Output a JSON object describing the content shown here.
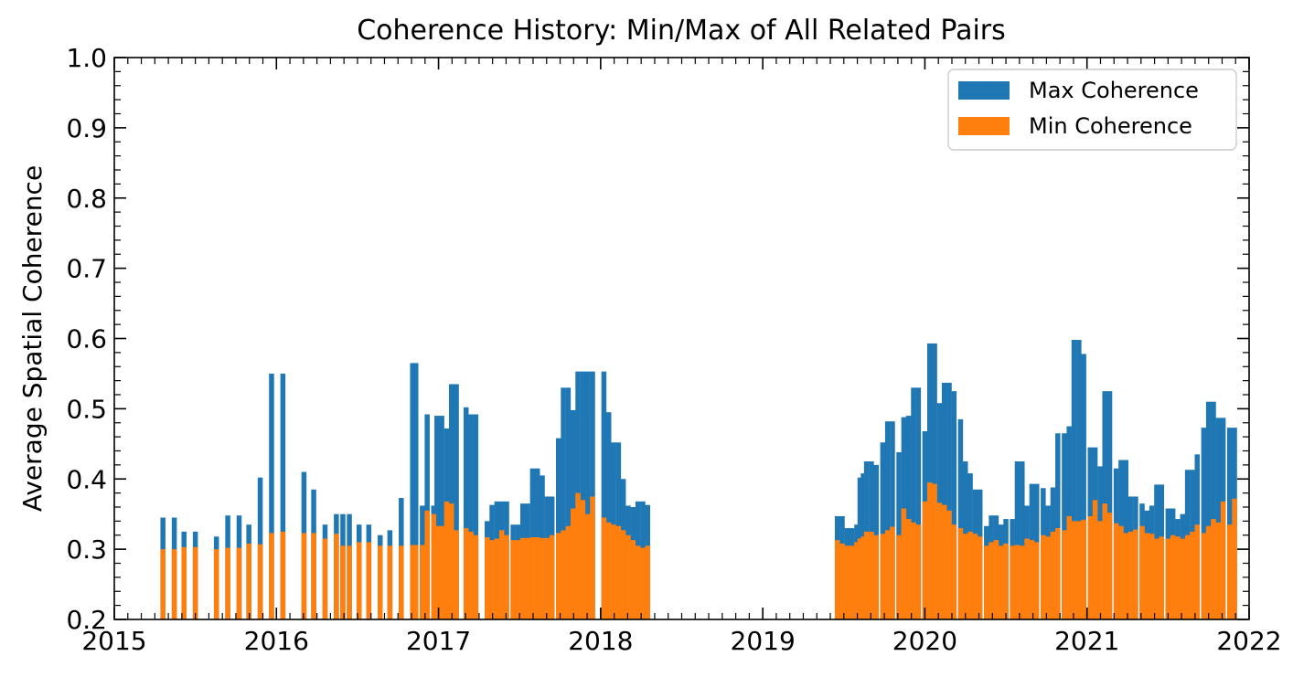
{
  "chart_data": {
    "type": "bar",
    "title": "Coherence History: Min/Max of All Related Pairs",
    "xlabel": "",
    "ylabel": "Average Spatial Coherence",
    "xlim": [
      2015.0,
      2022.0
    ],
    "ylim": [
      0.2,
      1.0
    ],
    "xticks": [
      "2015",
      "2016",
      "2017",
      "2018",
      "2019",
      "2020",
      "2021",
      "2022"
    ],
    "yticks": [
      "0.2",
      "0.3",
      "0.4",
      "0.5",
      "0.6",
      "0.7",
      "0.8",
      "0.9",
      "1.0"
    ],
    "grid": false,
    "legend_position": "top-right",
    "colors": {
      "max": "#1f77b4",
      "min": "#ff7f0e"
    },
    "series": [
      {
        "name": "Max Coherence",
        "points": [
          [
            2015.3,
            0.345
          ],
          [
            2015.37,
            0.345
          ],
          [
            2015.43,
            0.325
          ],
          [
            2015.5,
            0.325
          ],
          [
            2015.63,
            0.318
          ],
          [
            2015.7,
            0.348
          ],
          [
            2015.77,
            0.348
          ],
          [
            2015.83,
            0.335
          ],
          [
            2015.9,
            0.402
          ],
          [
            2015.97,
            0.55
          ],
          [
            2016.04,
            0.55
          ],
          [
            2016.17,
            0.41
          ],
          [
            2016.23,
            0.385
          ],
          [
            2016.3,
            0.335
          ],
          [
            2016.37,
            0.35
          ],
          [
            2016.41,
            0.35
          ],
          [
            2016.45,
            0.35
          ],
          [
            2016.51,
            0.335
          ],
          [
            2016.57,
            0.335
          ],
          [
            2016.64,
            0.32
          ],
          [
            2016.7,
            0.327
          ],
          [
            2016.77,
            0.373
          ],
          [
            2016.84,
            0.565
          ],
          [
            2016.86,
            0.565
          ],
          [
            2016.9,
            0.362
          ],
          [
            2016.93,
            0.492
          ],
          [
            2016.97,
            0.362
          ],
          [
            2016.99,
            0.49
          ],
          [
            2017.02,
            0.49
          ],
          [
            2017.05,
            0.472
          ],
          [
            2017.08,
            0.535
          ],
          [
            2017.11,
            0.535
          ],
          [
            2017.17,
            0.502
          ],
          [
            2017.2,
            0.492
          ],
          [
            2017.23,
            0.492
          ],
          [
            2017.3,
            0.34
          ],
          [
            2017.33,
            0.363
          ],
          [
            2017.36,
            0.368
          ],
          [
            2017.39,
            0.368
          ],
          [
            2017.42,
            0.368
          ],
          [
            2017.46,
            0.335
          ],
          [
            2017.49,
            0.335
          ],
          [
            2017.52,
            0.365
          ],
          [
            2017.55,
            0.365
          ],
          [
            2017.58,
            0.415
          ],
          [
            2017.61,
            0.415
          ],
          [
            2017.64,
            0.405
          ],
          [
            2017.67,
            0.375
          ],
          [
            2017.7,
            0.375
          ],
          [
            2017.74,
            0.458
          ],
          [
            2017.77,
            0.53
          ],
          [
            2017.8,
            0.53
          ],
          [
            2017.83,
            0.498
          ],
          [
            2017.86,
            0.553
          ],
          [
            2017.89,
            0.553
          ],
          [
            2017.92,
            0.553
          ],
          [
            2017.95,
            0.553
          ],
          [
            2018.02,
            0.553
          ],
          [
            2018.05,
            0.495
          ],
          [
            2018.08,
            0.452
          ],
          [
            2018.11,
            0.452
          ],
          [
            2018.14,
            0.4
          ],
          [
            2018.17,
            0.362
          ],
          [
            2018.2,
            0.36
          ],
          [
            2018.23,
            0.368
          ],
          [
            2018.26,
            0.368
          ],
          [
            2018.29,
            0.363
          ],
          [
            2019.46,
            0.347
          ],
          [
            2019.49,
            0.347
          ],
          [
            2019.52,
            0.33
          ],
          [
            2019.55,
            0.33
          ],
          [
            2019.58,
            0.335
          ],
          [
            2019.6,
            0.402
          ],
          [
            2019.62,
            0.408
          ],
          [
            2019.64,
            0.425
          ],
          [
            2019.67,
            0.425
          ],
          [
            2019.7,
            0.42
          ],
          [
            2019.74,
            0.452
          ],
          [
            2019.77,
            0.482
          ],
          [
            2019.8,
            0.482
          ],
          [
            2019.84,
            0.438
          ],
          [
            2019.87,
            0.488
          ],
          [
            2019.9,
            0.49
          ],
          [
            2019.93,
            0.53
          ],
          [
            2019.96,
            0.53
          ],
          [
            2020.0,
            0.468
          ],
          [
            2020.03,
            0.593
          ],
          [
            2020.06,
            0.593
          ],
          [
            2020.09,
            0.508
          ],
          [
            2020.12,
            0.537
          ],
          [
            2020.15,
            0.537
          ],
          [
            2020.18,
            0.525
          ],
          [
            2020.22,
            0.485
          ],
          [
            2020.25,
            0.425
          ],
          [
            2020.28,
            0.408
          ],
          [
            2020.31,
            0.385
          ],
          [
            2020.34,
            0.385
          ],
          [
            2020.38,
            0.333
          ],
          [
            2020.41,
            0.348
          ],
          [
            2020.44,
            0.348
          ],
          [
            2020.47,
            0.335
          ],
          [
            2020.5,
            0.343
          ],
          [
            2020.54,
            0.343
          ],
          [
            2020.57,
            0.425
          ],
          [
            2020.6,
            0.425
          ],
          [
            2020.63,
            0.362
          ],
          [
            2020.66,
            0.393
          ],
          [
            2020.69,
            0.393
          ],
          [
            2020.73,
            0.387
          ],
          [
            2020.76,
            0.362
          ],
          [
            2020.79,
            0.388
          ],
          [
            2020.82,
            0.465
          ],
          [
            2020.86,
            0.465
          ],
          [
            2020.89,
            0.475
          ],
          [
            2020.92,
            0.598
          ],
          [
            2020.95,
            0.598
          ],
          [
            2020.98,
            0.578
          ],
          [
            2021.02,
            0.445
          ],
          [
            2021.05,
            0.445
          ],
          [
            2021.08,
            0.418
          ],
          [
            2021.11,
            0.525
          ],
          [
            2021.14,
            0.525
          ],
          [
            2021.18,
            0.415
          ],
          [
            2021.21,
            0.427
          ],
          [
            2021.24,
            0.427
          ],
          [
            2021.27,
            0.375
          ],
          [
            2021.3,
            0.375
          ],
          [
            2021.34,
            0.365
          ],
          [
            2021.37,
            0.355
          ],
          [
            2021.4,
            0.362
          ],
          [
            2021.43,
            0.392
          ],
          [
            2021.46,
            0.392
          ],
          [
            2021.5,
            0.358
          ],
          [
            2021.53,
            0.358
          ],
          [
            2021.56,
            0.343
          ],
          [
            2021.59,
            0.35
          ],
          [
            2021.62,
            0.413
          ],
          [
            2021.65,
            0.413
          ],
          [
            2021.68,
            0.435
          ],
          [
            2021.72,
            0.473
          ],
          [
            2021.75,
            0.51
          ],
          [
            2021.78,
            0.51
          ],
          [
            2021.81,
            0.487
          ],
          [
            2021.84,
            0.487
          ],
          [
            2021.88,
            0.473
          ],
          [
            2021.91,
            0.473
          ]
        ]
      },
      {
        "name": "Min Coherence",
        "points": [
          [
            2015.3,
            0.3
          ],
          [
            2015.37,
            0.3
          ],
          [
            2015.43,
            0.303
          ],
          [
            2015.5,
            0.303
          ],
          [
            2015.63,
            0.3
          ],
          [
            2015.7,
            0.302
          ],
          [
            2015.77,
            0.302
          ],
          [
            2015.83,
            0.308
          ],
          [
            2015.9,
            0.307
          ],
          [
            2015.97,
            0.323
          ],
          [
            2016.04,
            0.325
          ],
          [
            2016.17,
            0.323
          ],
          [
            2016.23,
            0.323
          ],
          [
            2016.3,
            0.315
          ],
          [
            2016.37,
            0.322
          ],
          [
            2016.41,
            0.305
          ],
          [
            2016.45,
            0.305
          ],
          [
            2016.51,
            0.31
          ],
          [
            2016.57,
            0.31
          ],
          [
            2016.64,
            0.305
          ],
          [
            2016.7,
            0.305
          ],
          [
            2016.77,
            0.305
          ],
          [
            2016.84,
            0.306
          ],
          [
            2016.86,
            0.306
          ],
          [
            2016.9,
            0.306
          ],
          [
            2016.93,
            0.355
          ],
          [
            2016.97,
            0.35
          ],
          [
            2016.99,
            0.333
          ],
          [
            2017.02,
            0.333
          ],
          [
            2017.05,
            0.368
          ],
          [
            2017.08,
            0.365
          ],
          [
            2017.11,
            0.327
          ],
          [
            2017.17,
            0.33
          ],
          [
            2017.2,
            0.325
          ],
          [
            2017.23,
            0.32
          ],
          [
            2017.3,
            0.317
          ],
          [
            2017.33,
            0.313
          ],
          [
            2017.36,
            0.315
          ],
          [
            2017.39,
            0.327
          ],
          [
            2017.42,
            0.32
          ],
          [
            2017.46,
            0.313
          ],
          [
            2017.49,
            0.313
          ],
          [
            2017.52,
            0.316
          ],
          [
            2017.55,
            0.316
          ],
          [
            2017.58,
            0.317
          ],
          [
            2017.61,
            0.317
          ],
          [
            2017.64,
            0.316
          ],
          [
            2017.67,
            0.316
          ],
          [
            2017.7,
            0.32
          ],
          [
            2017.74,
            0.323
          ],
          [
            2017.77,
            0.327
          ],
          [
            2017.8,
            0.333
          ],
          [
            2017.83,
            0.358
          ],
          [
            2017.86,
            0.38
          ],
          [
            2017.89,
            0.37
          ],
          [
            2017.92,
            0.35
          ],
          [
            2017.95,
            0.375
          ],
          [
            2018.02,
            0.345
          ],
          [
            2018.05,
            0.338
          ],
          [
            2018.08,
            0.335
          ],
          [
            2018.11,
            0.333
          ],
          [
            2018.14,
            0.327
          ],
          [
            2018.17,
            0.32
          ],
          [
            2018.2,
            0.313
          ],
          [
            2018.23,
            0.305
          ],
          [
            2018.26,
            0.302
          ],
          [
            2018.29,
            0.305
          ],
          [
            2019.46,
            0.313
          ],
          [
            2019.49,
            0.308
          ],
          [
            2019.52,
            0.305
          ],
          [
            2019.55,
            0.305
          ],
          [
            2019.58,
            0.31
          ],
          [
            2019.6,
            0.315
          ],
          [
            2019.62,
            0.318
          ],
          [
            2019.64,
            0.325
          ],
          [
            2019.67,
            0.325
          ],
          [
            2019.7,
            0.32
          ],
          [
            2019.74,
            0.322
          ],
          [
            2019.77,
            0.327
          ],
          [
            2019.8,
            0.332
          ],
          [
            2019.84,
            0.32
          ],
          [
            2019.87,
            0.358
          ],
          [
            2019.9,
            0.343
          ],
          [
            2019.93,
            0.338
          ],
          [
            2019.96,
            0.335
          ],
          [
            2020.0,
            0.368
          ],
          [
            2020.03,
            0.395
          ],
          [
            2020.06,
            0.393
          ],
          [
            2020.09,
            0.366
          ],
          [
            2020.12,
            0.363
          ],
          [
            2020.15,
            0.355
          ],
          [
            2020.18,
            0.335
          ],
          [
            2020.22,
            0.33
          ],
          [
            2020.25,
            0.322
          ],
          [
            2020.28,
            0.325
          ],
          [
            2020.31,
            0.322
          ],
          [
            2020.34,
            0.318
          ],
          [
            2020.38,
            0.305
          ],
          [
            2020.41,
            0.31
          ],
          [
            2020.44,
            0.313
          ],
          [
            2020.47,
            0.305
          ],
          [
            2020.5,
            0.308
          ],
          [
            2020.54,
            0.305
          ],
          [
            2020.57,
            0.306
          ],
          [
            2020.6,
            0.305
          ],
          [
            2020.63,
            0.315
          ],
          [
            2020.66,
            0.313
          ],
          [
            2020.69,
            0.31
          ],
          [
            2020.73,
            0.32
          ],
          [
            2020.76,
            0.318
          ],
          [
            2020.79,
            0.325
          ],
          [
            2020.82,
            0.33
          ],
          [
            2020.86,
            0.327
          ],
          [
            2020.89,
            0.347
          ],
          [
            2020.92,
            0.34
          ],
          [
            2020.95,
            0.34
          ],
          [
            2020.98,
            0.342
          ],
          [
            2021.02,
            0.347
          ],
          [
            2021.05,
            0.37
          ],
          [
            2021.08,
            0.34
          ],
          [
            2021.11,
            0.365
          ],
          [
            2021.14,
            0.352
          ],
          [
            2021.18,
            0.337
          ],
          [
            2021.21,
            0.333
          ],
          [
            2021.24,
            0.323
          ],
          [
            2021.27,
            0.325
          ],
          [
            2021.3,
            0.328
          ],
          [
            2021.34,
            0.333
          ],
          [
            2021.37,
            0.323
          ],
          [
            2021.4,
            0.322
          ],
          [
            2021.43,
            0.315
          ],
          [
            2021.46,
            0.318
          ],
          [
            2021.5,
            0.315
          ],
          [
            2021.53,
            0.32
          ],
          [
            2021.56,
            0.318
          ],
          [
            2021.59,
            0.315
          ],
          [
            2021.62,
            0.32
          ],
          [
            2021.65,
            0.325
          ],
          [
            2021.68,
            0.335
          ],
          [
            2021.72,
            0.323
          ],
          [
            2021.75,
            0.333
          ],
          [
            2021.78,
            0.343
          ],
          [
            2021.81,
            0.338
          ],
          [
            2021.84,
            0.368
          ],
          [
            2021.88,
            0.335
          ],
          [
            2021.91,
            0.372
          ]
        ]
      }
    ]
  }
}
